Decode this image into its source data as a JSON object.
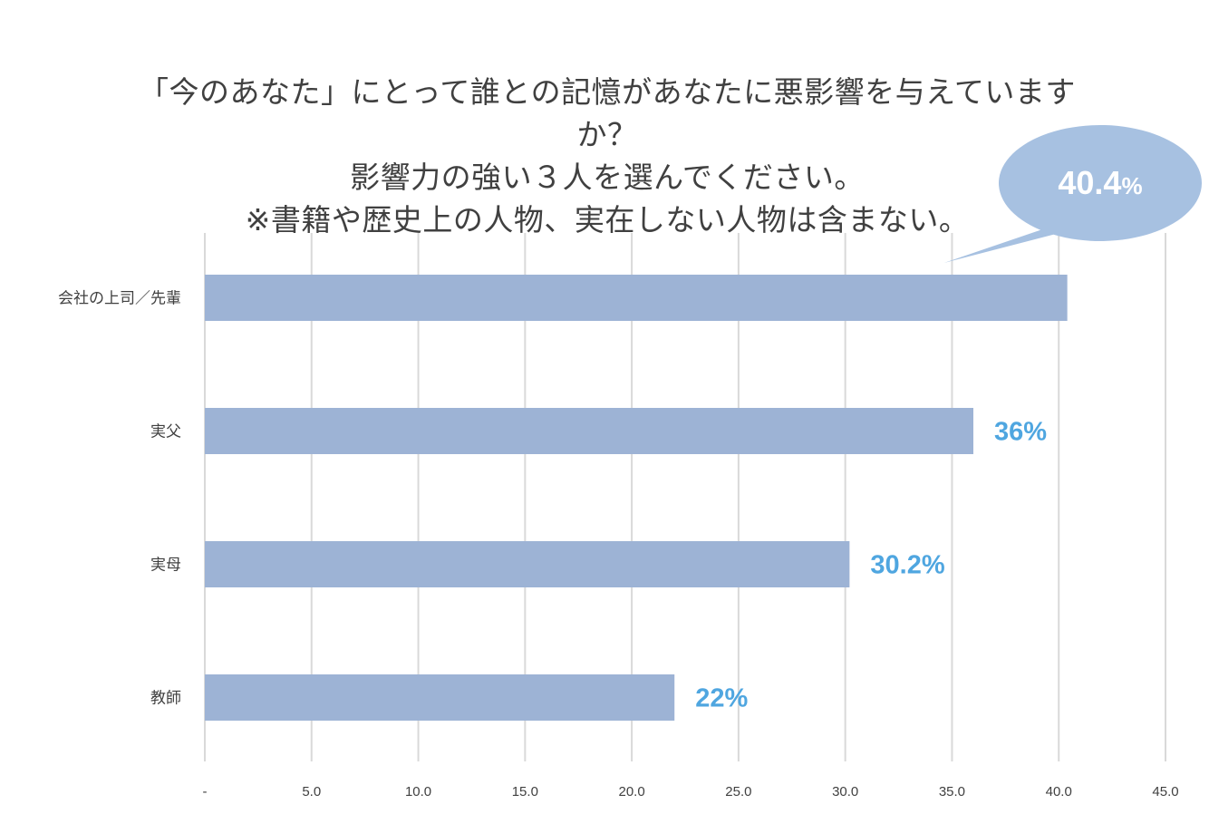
{
  "chart_data": {
    "type": "bar",
    "orientation": "horizontal",
    "title_lines": [
      "「今のあなた」にとって誰との記憶があなたに悪影響を与えていますか？",
      "影響力の強い３人を選んでください。",
      "※書籍や歴史上の人物、実在しない人物は含まない。"
    ],
    "categories": [
      "会社の上司／先輩",
      "実父",
      "実母",
      "教師"
    ],
    "values": [
      40.4,
      36,
      30.2,
      22
    ],
    "data_labels": [
      "",
      "36%",
      "30.2%",
      "22%"
    ],
    "callout": {
      "value": "40.4",
      "unit": "%"
    },
    "x_ticks": [
      "-",
      "5.0",
      "10.0",
      "15.0",
      "20.0",
      "25.0",
      "30.0",
      "35.0",
      "40.0",
      "45.0"
    ],
    "xlim": [
      0,
      45
    ],
    "grid": "vertical",
    "xlabel": "",
    "ylabel": "",
    "colors": {
      "bar": "#9db3d5",
      "label": "#4fa6e0",
      "callout": "#a7c1e1",
      "grid": "#d9d9d9",
      "text": "#404040"
    }
  }
}
